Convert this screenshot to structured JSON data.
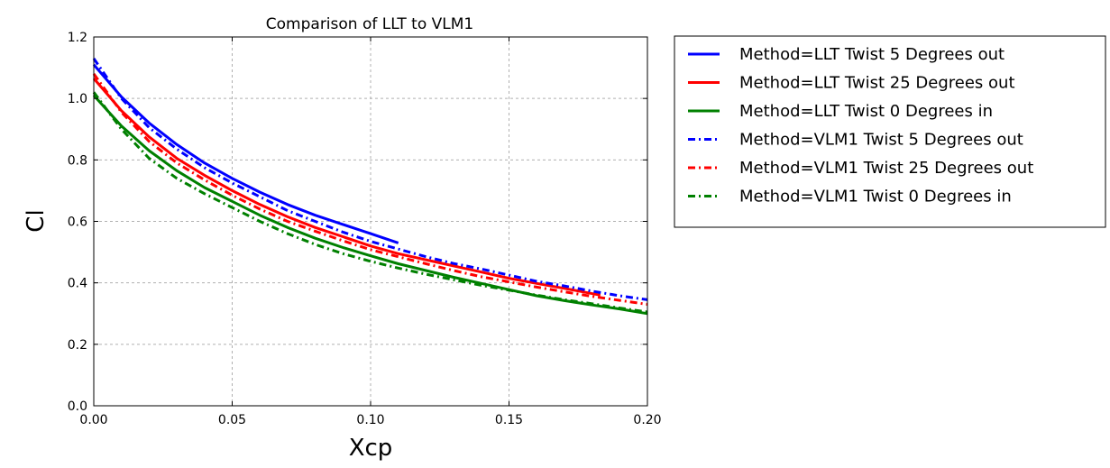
{
  "chart_data": {
    "type": "line",
    "title": "Comparison of LLT to VLM1",
    "xlabel": "Xcp",
    "ylabel": "Cl",
    "xlim": [
      0.0,
      0.2
    ],
    "ylim": [
      0.0,
      1.2
    ],
    "xticks": [
      "0.00",
      "0.05",
      "0.10",
      "0.15",
      "0.20"
    ],
    "yticks": [
      "0.0",
      "0.2",
      "0.4",
      "0.6",
      "0.8",
      "1.0",
      "1.2"
    ],
    "grid": true,
    "legend_position": "outside-right",
    "series": [
      {
        "name": "Method=LLT Twist 5 Degrees out",
        "color": "#0000ff",
        "style": "solid",
        "x": [
          0.0,
          0.01,
          0.02,
          0.03,
          0.04,
          0.05,
          0.06,
          0.07,
          0.08,
          0.09,
          0.1,
          0.11
        ],
        "y": [
          1.11,
          1.005,
          0.92,
          0.85,
          0.79,
          0.74,
          0.695,
          0.655,
          0.62,
          0.59,
          0.56,
          0.53
        ]
      },
      {
        "name": "Method=LLT Twist 25 Degrees out",
        "color": "#ff0000",
        "style": "solid",
        "x": [
          0.0,
          0.01,
          0.02,
          0.03,
          0.04,
          0.05,
          0.06,
          0.07,
          0.08,
          0.09,
          0.1,
          0.11,
          0.12,
          0.13,
          0.14,
          0.15,
          0.16,
          0.17,
          0.183
        ],
        "y": [
          1.065,
          0.96,
          0.875,
          0.805,
          0.75,
          0.7,
          0.655,
          0.615,
          0.58,
          0.55,
          0.52,
          0.495,
          0.475,
          0.455,
          0.435,
          0.415,
          0.398,
          0.382,
          0.36
        ]
      },
      {
        "name": "Method=LLT Twist 0 Degrees in",
        "color": "#008000",
        "style": "solid",
        "x": [
          0.0,
          0.01,
          0.02,
          0.03,
          0.04,
          0.05,
          0.06,
          0.07,
          0.08,
          0.09,
          0.1,
          0.11,
          0.12,
          0.13,
          0.14,
          0.15,
          0.16,
          0.17,
          0.18,
          0.19,
          0.2
        ],
        "y": [
          1.01,
          0.91,
          0.83,
          0.765,
          0.71,
          0.665,
          0.62,
          0.58,
          0.545,
          0.515,
          0.488,
          0.462,
          0.44,
          0.418,
          0.398,
          0.378,
          0.358,
          0.342,
          0.328,
          0.315,
          0.3
        ]
      },
      {
        "name": "Method=VLM1 Twist 5 Degrees out",
        "color": "#0000ff",
        "style": "dashdot",
        "x": [
          0.0,
          0.01,
          0.02,
          0.03,
          0.04,
          0.05,
          0.06,
          0.07,
          0.08,
          0.09,
          0.1,
          0.11,
          0.12,
          0.13,
          0.14,
          0.15,
          0.16,
          0.17,
          0.18,
          0.19,
          0.2
        ],
        "y": [
          1.13,
          1.0,
          0.905,
          0.835,
          0.775,
          0.725,
          0.68,
          0.635,
          0.6,
          0.565,
          0.535,
          0.51,
          0.485,
          0.463,
          0.445,
          0.425,
          0.405,
          0.39,
          0.373,
          0.358,
          0.345
        ]
      },
      {
        "name": "Method=VLM1 Twist 25 Degrees out",
        "color": "#ff0000",
        "style": "dashdot",
        "x": [
          0.0,
          0.01,
          0.02,
          0.03,
          0.04,
          0.05,
          0.06,
          0.07,
          0.08,
          0.09,
          0.1,
          0.11,
          0.12,
          0.13,
          0.14,
          0.15,
          0.16,
          0.17,
          0.18,
          0.19,
          0.2
        ],
        "y": [
          1.08,
          0.955,
          0.86,
          0.79,
          0.735,
          0.685,
          0.64,
          0.6,
          0.568,
          0.537,
          0.508,
          0.485,
          0.462,
          0.44,
          0.42,
          0.403,
          0.386,
          0.371,
          0.356,
          0.343,
          0.33
        ]
      },
      {
        "name": "Method=VLM1 Twist 0 Degrees in",
        "color": "#008000",
        "style": "dashdot",
        "x": [
          0.0,
          0.01,
          0.02,
          0.03,
          0.04,
          0.05,
          0.06,
          0.07,
          0.08,
          0.09,
          0.1,
          0.11,
          0.12,
          0.13,
          0.14,
          0.15,
          0.16,
          0.17,
          0.18,
          0.19,
          0.2
        ],
        "y": [
          1.02,
          0.9,
          0.805,
          0.74,
          0.69,
          0.645,
          0.6,
          0.56,
          0.525,
          0.495,
          0.47,
          0.448,
          0.428,
          0.41,
          0.392,
          0.376,
          0.36,
          0.345,
          0.332,
          0.318,
          0.305
        ]
      }
    ]
  }
}
